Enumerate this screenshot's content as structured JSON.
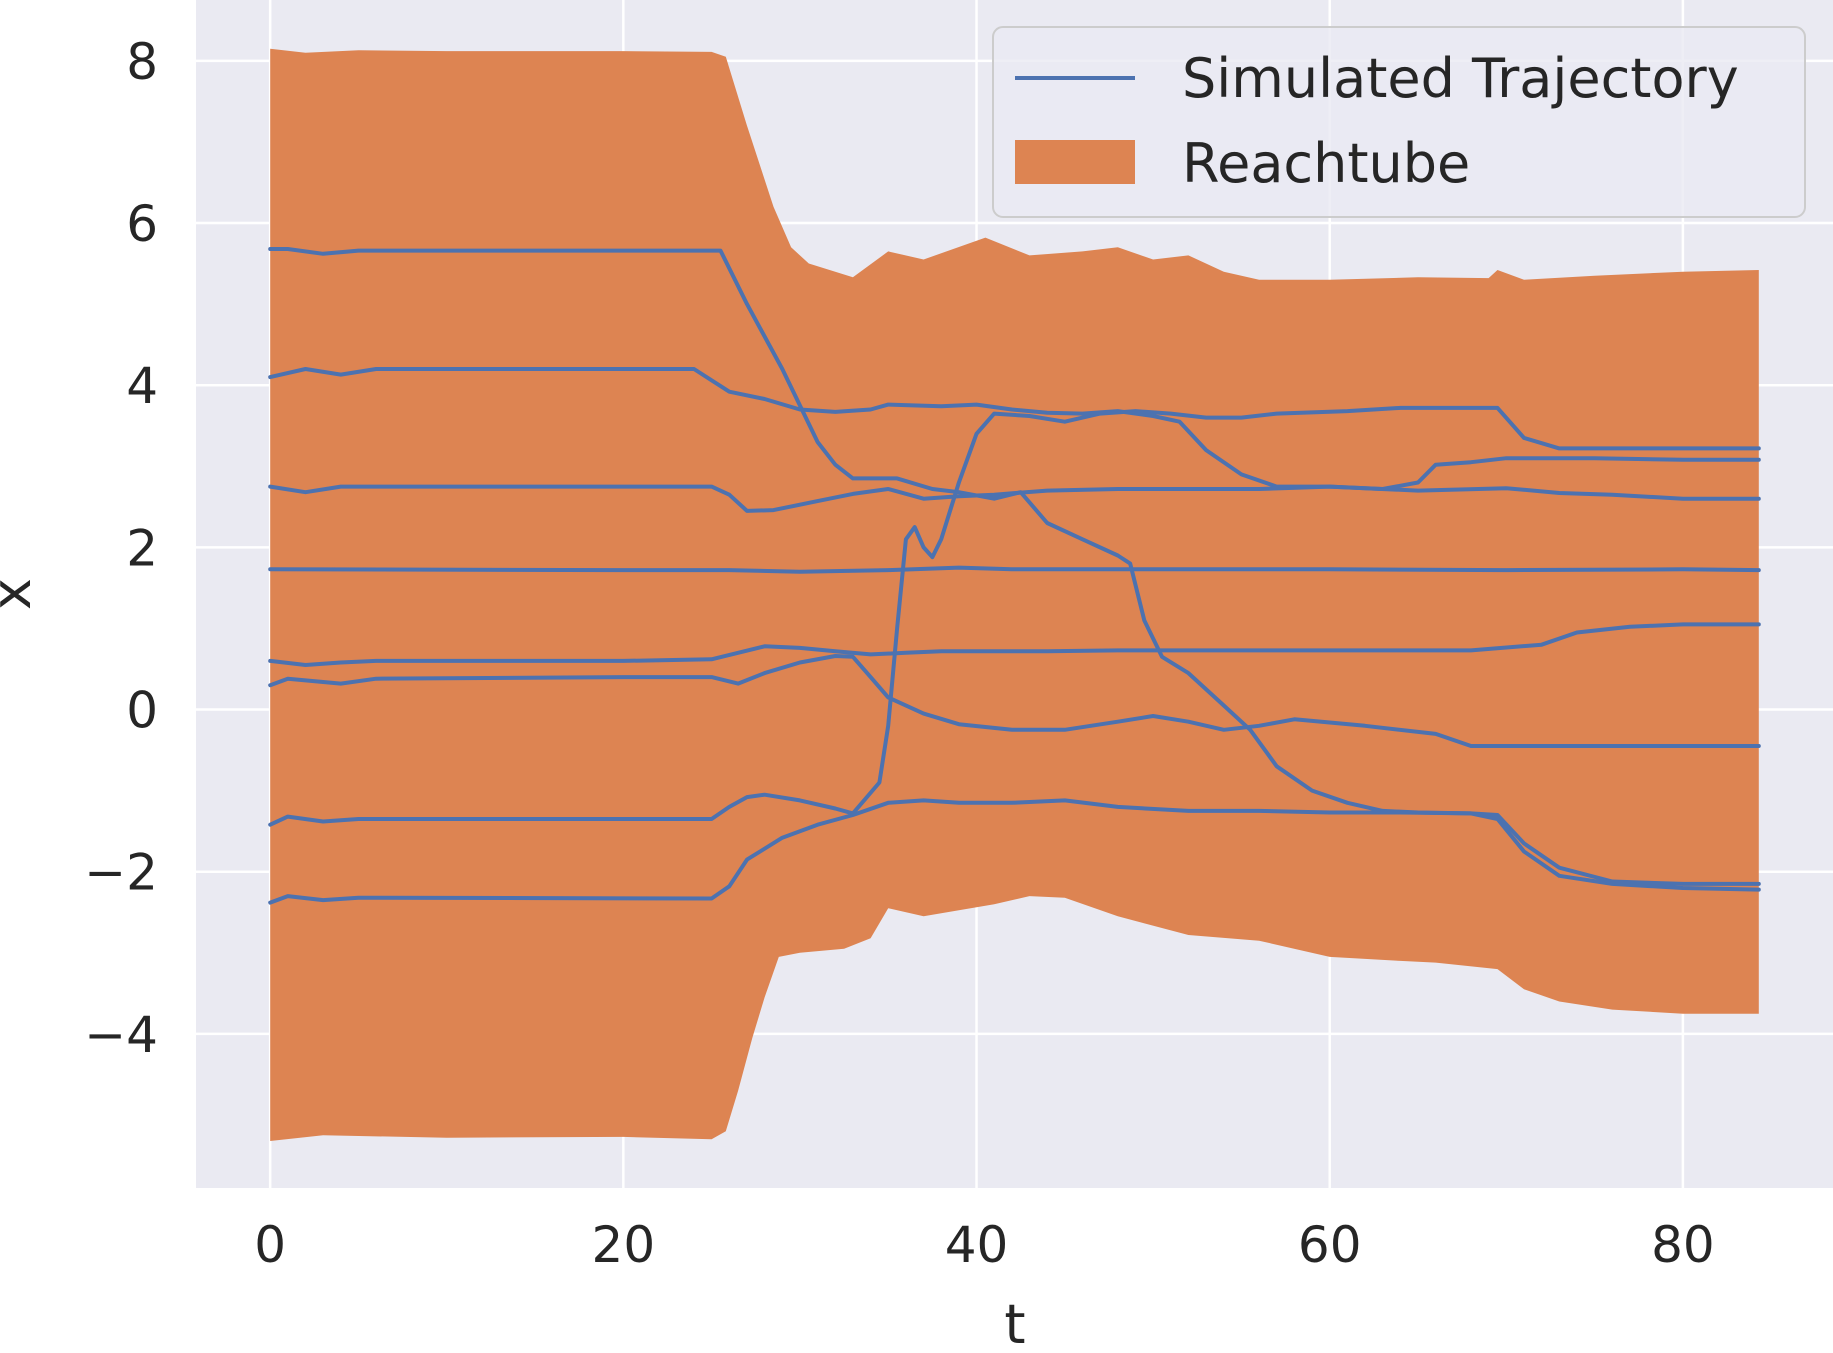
{
  "chart_data": {
    "type": "line",
    "title": "",
    "xlabel": "t",
    "ylabel": "x",
    "xlim": [
      -4.2,
      88.5
    ],
    "ylim": [
      -5.9,
      8.75
    ],
    "xticks": [
      0,
      20,
      40,
      60,
      80
    ],
    "xtick_labels": [
      "0",
      "20",
      "40",
      "60",
      "80"
    ],
    "yticks": [
      8,
      6,
      4,
      2,
      0,
      -2,
      -4
    ],
    "ytick_labels": [
      "8",
      "6",
      "4",
      "2",
      "0",
      "−2",
      "−4"
    ],
    "grid": true,
    "legend": {
      "position": "top-right",
      "entries": [
        {
          "label": "Simulated Trajectory",
          "kind": "line",
          "color": "#4c72b0"
        },
        {
          "label": "Reachtube",
          "kind": "patch",
          "color": "#dd8452"
        }
      ]
    },
    "reachtube": {
      "name": "Reachtube",
      "color": "#dd8452",
      "upper": [
        [
          0,
          8.15
        ],
        [
          2,
          8.1
        ],
        [
          5,
          8.13
        ],
        [
          10,
          8.12
        ],
        [
          20,
          8.12
        ],
        [
          25,
          8.11
        ],
        [
          25.8,
          8.05
        ],
        [
          27,
          7.2
        ],
        [
          28.5,
          6.2
        ],
        [
          29.5,
          5.7
        ],
        [
          30.5,
          5.5
        ],
        [
          33,
          5.33
        ],
        [
          35,
          5.65
        ],
        [
          37,
          5.55
        ],
        [
          40.5,
          5.82
        ],
        [
          43,
          5.6
        ],
        [
          46,
          5.65
        ],
        [
          48,
          5.7
        ],
        [
          50,
          5.55
        ],
        [
          52,
          5.6
        ],
        [
          54,
          5.4
        ],
        [
          56,
          5.3
        ],
        [
          60,
          5.3
        ],
        [
          65,
          5.33
        ],
        [
          69,
          5.32
        ],
        [
          69.5,
          5.42
        ],
        [
          71,
          5.3
        ],
        [
          75,
          5.35
        ],
        [
          80,
          5.4
        ],
        [
          84.3,
          5.42
        ]
      ],
      "lower": [
        [
          84.3,
          -3.75
        ],
        [
          80,
          -3.75
        ],
        [
          76,
          -3.7
        ],
        [
          73,
          -3.6
        ],
        [
          71,
          -3.45
        ],
        [
          69.5,
          -3.2
        ],
        [
          66,
          -3.12
        ],
        [
          64,
          -3.1
        ],
        [
          60,
          -3.05
        ],
        [
          56,
          -2.85
        ],
        [
          52,
          -2.78
        ],
        [
          48,
          -2.55
        ],
        [
          45,
          -2.32
        ],
        [
          43,
          -2.3
        ],
        [
          41,
          -2.4
        ],
        [
          37,
          -2.55
        ],
        [
          35,
          -2.45
        ],
        [
          34,
          -2.82
        ],
        [
          32.5,
          -2.95
        ],
        [
          30,
          -3.0
        ],
        [
          28.8,
          -3.05
        ],
        [
          28,
          -3.55
        ],
        [
          27.3,
          -4.05
        ],
        [
          26.5,
          -4.7
        ],
        [
          25.8,
          -5.2
        ],
        [
          25,
          -5.3
        ],
        [
          20,
          -5.27
        ],
        [
          10,
          -5.28
        ],
        [
          3,
          -5.25
        ],
        [
          0,
          -5.32
        ]
      ]
    },
    "series": [
      {
        "name": "Simulated Trajectory",
        "color": "#4c72b0",
        "points": [
          [
            0,
            5.68
          ],
          [
            1,
            5.68
          ],
          [
            3,
            5.62
          ],
          [
            5,
            5.66
          ],
          [
            25.5,
            5.66
          ],
          [
            27,
            5.0
          ],
          [
            29,
            4.2
          ],
          [
            31,
            3.3
          ],
          [
            32,
            3.02
          ],
          [
            33,
            2.85
          ],
          [
            35.5,
            2.85
          ],
          [
            37.5,
            2.72
          ],
          [
            39,
            2.68
          ],
          [
            41,
            2.6
          ],
          [
            42.5,
            2.68
          ],
          [
            44,
            2.3
          ],
          [
            46,
            2.1
          ],
          [
            48,
            1.9
          ],
          [
            48.7,
            1.8
          ],
          [
            49.5,
            1.1
          ],
          [
            50.5,
            0.65
          ],
          [
            52,
            0.45
          ],
          [
            54,
            0.05
          ],
          [
            55.5,
            -0.25
          ],
          [
            57,
            -0.7
          ],
          [
            59,
            -1.0
          ],
          [
            61,
            -1.15
          ],
          [
            63,
            -1.25
          ],
          [
            65,
            -1.27
          ],
          [
            68,
            -1.28
          ],
          [
            69.5,
            -1.35
          ],
          [
            71,
            -1.75
          ],
          [
            73,
            -2.05
          ],
          [
            76,
            -2.15
          ],
          [
            80,
            -2.2
          ],
          [
            84.3,
            -2.22
          ]
        ]
      },
      {
        "name": "Simulated Trajectory",
        "color": "#4c72b0",
        "points": [
          [
            0,
            4.1
          ],
          [
            2,
            4.2
          ],
          [
            4,
            4.13
          ],
          [
            6,
            4.2
          ],
          [
            24,
            4.2
          ],
          [
            26,
            3.92
          ],
          [
            28,
            3.83
          ],
          [
            30,
            3.7
          ],
          [
            32,
            3.67
          ],
          [
            34,
            3.7
          ],
          [
            35,
            3.76
          ],
          [
            38,
            3.74
          ],
          [
            40,
            3.76
          ],
          [
            42,
            3.7
          ],
          [
            44,
            3.66
          ],
          [
            46,
            3.65
          ],
          [
            48,
            3.68
          ],
          [
            50,
            3.62
          ],
          [
            51.5,
            3.55
          ],
          [
            53,
            3.2
          ],
          [
            55,
            2.9
          ],
          [
            57,
            2.75
          ],
          [
            60,
            2.75
          ],
          [
            63,
            2.72
          ],
          [
            65,
            2.8
          ],
          [
            66,
            3.02
          ],
          [
            68,
            3.05
          ],
          [
            70,
            3.1
          ],
          [
            75,
            3.1
          ],
          [
            80,
            3.08
          ],
          [
            84.3,
            3.08
          ]
        ]
      },
      {
        "name": "Simulated Trajectory",
        "color": "#4c72b0",
        "points": [
          [
            0,
            2.75
          ],
          [
            2,
            2.68
          ],
          [
            4,
            2.75
          ],
          [
            25,
            2.75
          ],
          [
            26,
            2.65
          ],
          [
            27,
            2.45
          ],
          [
            28.5,
            2.46
          ],
          [
            31,
            2.57
          ],
          [
            33,
            2.66
          ],
          [
            35,
            2.72
          ],
          [
            37,
            2.6
          ],
          [
            39,
            2.63
          ],
          [
            41,
            2.65
          ],
          [
            44,
            2.7
          ],
          [
            48,
            2.72
          ],
          [
            56,
            2.72
          ],
          [
            60,
            2.75
          ],
          [
            65,
            2.7
          ],
          [
            70,
            2.73
          ],
          [
            73,
            2.67
          ],
          [
            76,
            2.65
          ],
          [
            80,
            2.6
          ],
          [
            84.3,
            2.6
          ]
        ]
      },
      {
        "name": "Simulated Trajectory",
        "color": "#4c72b0",
        "points": [
          [
            0,
            1.73
          ],
          [
            20,
            1.72
          ],
          [
            26,
            1.72
          ],
          [
            30,
            1.7
          ],
          [
            35,
            1.72
          ],
          [
            39,
            1.75
          ],
          [
            42,
            1.73
          ],
          [
            50,
            1.73
          ],
          [
            60,
            1.73
          ],
          [
            70,
            1.72
          ],
          [
            80,
            1.73
          ],
          [
            84.3,
            1.72
          ]
        ]
      },
      {
        "name": "Simulated Trajectory",
        "color": "#4c72b0",
        "points": [
          [
            0,
            0.6
          ],
          [
            2,
            0.55
          ],
          [
            4,
            0.58
          ],
          [
            6,
            0.6
          ],
          [
            20,
            0.6
          ],
          [
            25,
            0.62
          ],
          [
            26.5,
            0.7
          ],
          [
            28,
            0.78
          ],
          [
            30,
            0.76
          ],
          [
            32,
            0.72
          ],
          [
            34,
            0.68
          ],
          [
            36,
            0.7
          ],
          [
            38,
            0.72
          ],
          [
            44,
            0.72
          ],
          [
            48,
            0.73
          ],
          [
            55,
            0.73
          ],
          [
            65,
            0.73
          ],
          [
            68,
            0.73
          ],
          [
            72,
            0.8
          ],
          [
            74,
            0.95
          ],
          [
            77,
            1.02
          ],
          [
            80,
            1.05
          ],
          [
            84.3,
            1.05
          ]
        ]
      },
      {
        "name": "Simulated Trajectory",
        "color": "#4c72b0",
        "points": [
          [
            0,
            0.3
          ],
          [
            1,
            0.38
          ],
          [
            4,
            0.32
          ],
          [
            6,
            0.38
          ],
          [
            20,
            0.4
          ],
          [
            25,
            0.4
          ],
          [
            26.5,
            0.32
          ],
          [
            28,
            0.45
          ],
          [
            30,
            0.58
          ],
          [
            32,
            0.66
          ],
          [
            33,
            0.65
          ],
          [
            34,
            0.4
          ],
          [
            35,
            0.15
          ],
          [
            37,
            -0.05
          ],
          [
            39,
            -0.18
          ],
          [
            42,
            -0.25
          ],
          [
            45,
            -0.25
          ],
          [
            48,
            -0.15
          ],
          [
            50,
            -0.08
          ],
          [
            52,
            -0.15
          ],
          [
            54,
            -0.25
          ],
          [
            56,
            -0.2
          ],
          [
            58,
            -0.12
          ],
          [
            62,
            -0.2
          ],
          [
            66,
            -0.3
          ],
          [
            68,
            -0.45
          ],
          [
            72,
            -0.45
          ],
          [
            80,
            -0.45
          ],
          [
            84.3,
            -0.45
          ]
        ]
      },
      {
        "name": "Simulated Trajectory",
        "color": "#4c72b0",
        "points": [
          [
            0,
            -1.42
          ],
          [
            1,
            -1.32
          ],
          [
            3,
            -1.38
          ],
          [
            5,
            -1.35
          ],
          [
            25,
            -1.35
          ],
          [
            26,
            -1.2
          ],
          [
            27,
            -1.08
          ],
          [
            28,
            -1.05
          ],
          [
            30,
            -1.12
          ],
          [
            32,
            -1.22
          ],
          [
            33,
            -1.28
          ],
          [
            34.5,
            -0.9
          ],
          [
            35,
            -0.2
          ],
          [
            35.5,
            1.0
          ],
          [
            36,
            2.1
          ],
          [
            36.5,
            2.25
          ],
          [
            37,
            2.0
          ],
          [
            37.5,
            1.88
          ],
          [
            38,
            2.1
          ],
          [
            39,
            2.8
          ],
          [
            40,
            3.4
          ],
          [
            41,
            3.65
          ],
          [
            43,
            3.62
          ],
          [
            45,
            3.55
          ],
          [
            47,
            3.65
          ],
          [
            49,
            3.68
          ],
          [
            51,
            3.65
          ],
          [
            53,
            3.6
          ],
          [
            55,
            3.6
          ],
          [
            57,
            3.65
          ],
          [
            61,
            3.68
          ],
          [
            64,
            3.72
          ],
          [
            68,
            3.72
          ],
          [
            69.5,
            3.72
          ],
          [
            71,
            3.35
          ],
          [
            73,
            3.22
          ],
          [
            80,
            3.22
          ],
          [
            84.3,
            3.22
          ]
        ]
      },
      {
        "name": "Simulated Trajectory",
        "color": "#4c72b0",
        "points": [
          [
            0,
            -2.38
          ],
          [
            1,
            -2.3
          ],
          [
            3,
            -2.35
          ],
          [
            5,
            -2.32
          ],
          [
            25,
            -2.33
          ],
          [
            26,
            -2.18
          ],
          [
            27,
            -1.85
          ],
          [
            29,
            -1.58
          ],
          [
            31,
            -1.42
          ],
          [
            33,
            -1.3
          ],
          [
            35,
            -1.15
          ],
          [
            37,
            -1.12
          ],
          [
            39,
            -1.15
          ],
          [
            42,
            -1.15
          ],
          [
            45,
            -1.12
          ],
          [
            48,
            -1.2
          ],
          [
            52,
            -1.25
          ],
          [
            56,
            -1.25
          ],
          [
            60,
            -1.27
          ],
          [
            64,
            -1.27
          ],
          [
            68,
            -1.28
          ],
          [
            69.5,
            -1.3
          ],
          [
            71,
            -1.65
          ],
          [
            73,
            -1.95
          ],
          [
            76,
            -2.12
          ],
          [
            80,
            -2.15
          ],
          [
            84.3,
            -2.15
          ]
        ]
      }
    ]
  }
}
